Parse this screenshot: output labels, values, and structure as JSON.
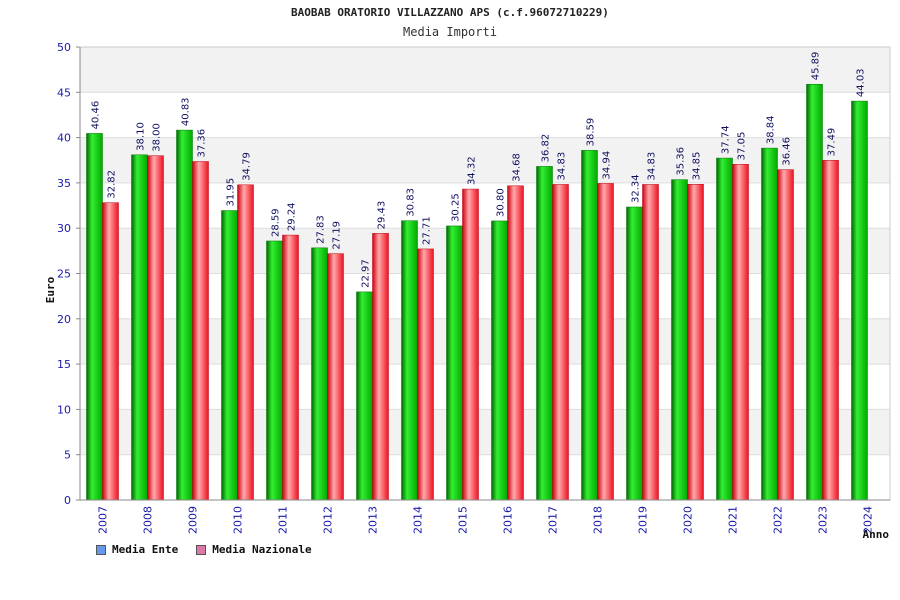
{
  "chart_data": {
    "type": "bar",
    "title": "BAOBAB ORATORIO VILLAZZANO APS (c.f.96072710229)",
    "subtitle": "Media Importi",
    "xlabel": "Anno",
    "ylabel": "Euro",
    "ylim": [
      0,
      50
    ],
    "yticks": [
      0,
      5,
      10,
      15,
      20,
      25,
      30,
      35,
      40,
      45,
      50
    ],
    "grid": true,
    "legend_position": "bottom-left",
    "categories": [
      "2007",
      "2008",
      "2009",
      "2010",
      "2011",
      "2012",
      "2013",
      "2014",
      "2015",
      "2016",
      "2017",
      "2018",
      "2019",
      "2020",
      "2021",
      "2022",
      "2023",
      "2024"
    ],
    "series": [
      {
        "name": "Media Ente",
        "color": "#00aa00",
        "legend_color": "#6699ee",
        "values": [
          40.46,
          38.1,
          40.83,
          31.95,
          28.59,
          27.83,
          22.97,
          30.83,
          30.25,
          30.8,
          36.82,
          38.59,
          32.34,
          35.36,
          37.74,
          38.84,
          45.89,
          44.03
        ],
        "labels": [
          "40.46",
          "38.10",
          "40.83",
          "31.95",
          "28.59",
          "27.83",
          "22.97",
          "30.83",
          "30.25",
          "30.80",
          "36.82",
          "38.59",
          "32.34",
          "35.36",
          "37.74",
          "38.84",
          "45.89",
          "44.03"
        ]
      },
      {
        "name": "Media Nazionale",
        "color": "#ee1122",
        "legend_color": "#dd77aa",
        "values": [
          32.82,
          38.0,
          37.36,
          34.79,
          29.24,
          27.19,
          29.43,
          27.71,
          34.32,
          34.68,
          34.83,
          34.94,
          34.83,
          34.85,
          37.05,
          36.46,
          37.49,
          null
        ],
        "labels": [
          "32.82",
          "38.00",
          "37.36",
          "34.79",
          "29.24",
          "27.19",
          "29.43",
          "27.71",
          "34.32",
          "34.68",
          "34.83",
          "34.94",
          "34.83",
          "34.85",
          "37.05",
          "36.46",
          "37.49",
          ""
        ]
      }
    ]
  }
}
